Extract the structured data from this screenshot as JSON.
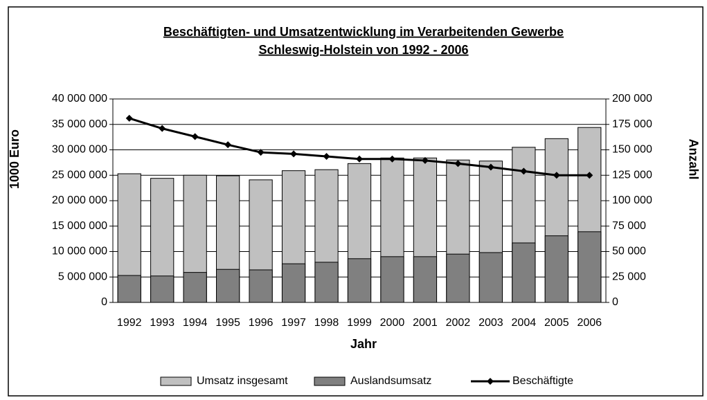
{
  "chart_data": {
    "type": "bar-line",
    "title": [
      "Beschäftigten- und Umsatzentwicklung im Verarbeitenden Gewerbe",
      "Schleswig-Holstein von 1992 - 2006"
    ],
    "x_label": "Jahr",
    "y_label": "1000 Euro",
    "y2_label": "Anzahl",
    "categories": [
      "1992",
      "1993",
      "1994",
      "1995",
      "1996",
      "1997",
      "1998",
      "1999",
      "2000",
      "2001",
      "2002",
      "2003",
      "2004",
      "2005",
      "2006"
    ],
    "series": [
      {
        "name": "Umsatz insgesamt",
        "type": "bar",
        "color": "#c0c0c0",
        "values": [
          25300000,
          24400000,
          25000000,
          24900000,
          24100000,
          25900000,
          26100000,
          27300000,
          28400000,
          28400000,
          28000000,
          27800000,
          30500000,
          32200000,
          34400000
        ]
      },
      {
        "name": "Auslandsumsatz",
        "type": "bar",
        "color": "#808080",
        "values": [
          5300000,
          5200000,
          5900000,
          6500000,
          6400000,
          7600000,
          7900000,
          8600000,
          9000000,
          9000000,
          9500000,
          9800000,
          11700000,
          13100000,
          13900000
        ]
      },
      {
        "name": "Beschäftigte",
        "type": "line",
        "axis": "y2",
        "color": "#000000",
        "values": [
          181000,
          171000,
          163000,
          155000,
          147500,
          146000,
          143500,
          141000,
          141000,
          139500,
          136500,
          133000,
          129000,
          125000,
          125000
        ]
      }
    ],
    "ylim": [
      0,
      40000000
    ],
    "yticks": [
      0,
      {
        "value": 5000000,
        "label": "5 000 000"
      },
      {
        "value": 10000000,
        "label": "10 000 000"
      },
      {
        "value": 15000000,
        "label": "15 000 000"
      },
      {
        "value": 20000000,
        "label": "20 000 000"
      },
      {
        "value": 25000000,
        "label": "25 000 000"
      },
      {
        "value": 30000000,
        "label": "30 000 000"
      },
      {
        "value": 35000000,
        "label": "35 000 000"
      },
      {
        "value": 40000000,
        "label": "40 000 000"
      }
    ],
    "y2lim": [
      0,
      200000
    ],
    "y2ticks": [
      0,
      {
        "value": 25000,
        "label": "25 000"
      },
      {
        "value": 50000,
        "label": "50 000"
      },
      {
        "value": 75000,
        "label": "75 000"
      },
      {
        "value": 100000,
        "label": "100 000"
      },
      {
        "value": 125000,
        "label": "125 000"
      },
      {
        "value": 150000,
        "label": "150 000"
      },
      {
        "value": 175000,
        "label": "175 000"
      },
      {
        "value": 200000,
        "label": "200 000"
      }
    ],
    "grid": true,
    "legend": "bottom"
  }
}
